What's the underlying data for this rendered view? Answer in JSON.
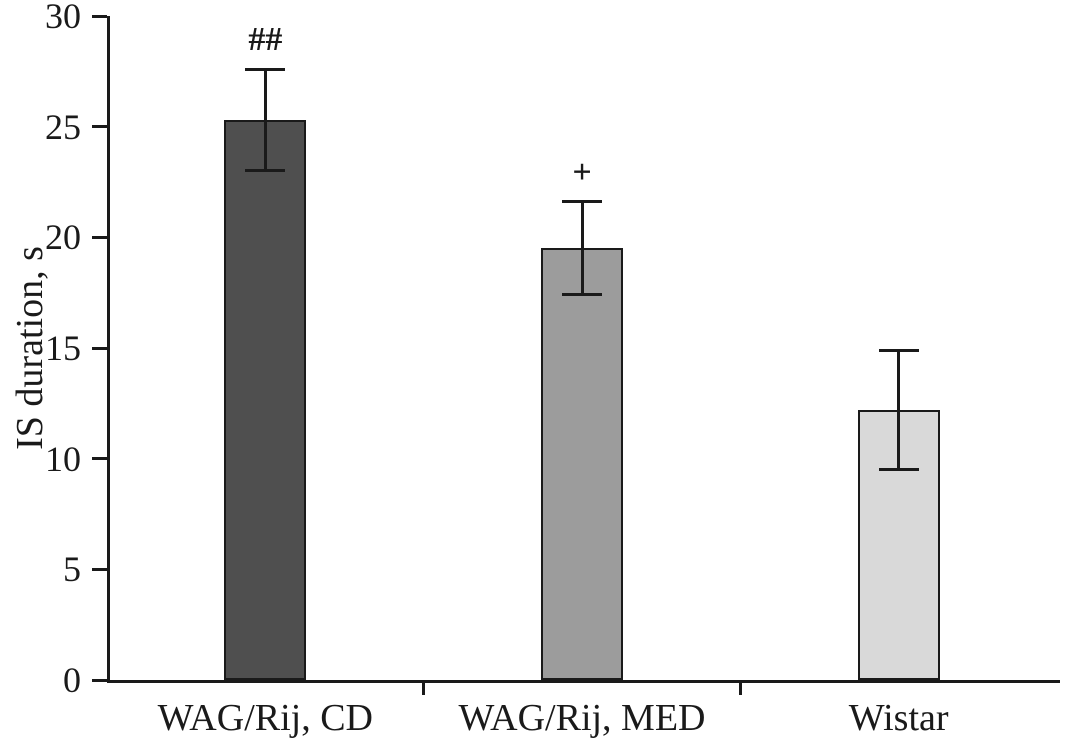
{
  "chart_data": {
    "type": "bar",
    "title": "",
    "xlabel": "",
    "ylabel": "IS duration, s",
    "ylim": [
      0,
      30
    ],
    "yticks": [
      0,
      5,
      10,
      15,
      20,
      25,
      30
    ],
    "categories": [
      "WAG/Rij, CD",
      "WAG/Rij, MED",
      "Wistar"
    ],
    "values": [
      25.3,
      19.5,
      12.2
    ],
    "errors": [
      2.3,
      2.1,
      2.7
    ],
    "annotations": [
      "##",
      "+",
      ""
    ],
    "bar_colors": [
      "#4f4f4f",
      "#9c9c9c",
      "#d9d9d9"
    ],
    "axis_color": "#1a1a1a",
    "grid": false,
    "legend_position": "none"
  }
}
